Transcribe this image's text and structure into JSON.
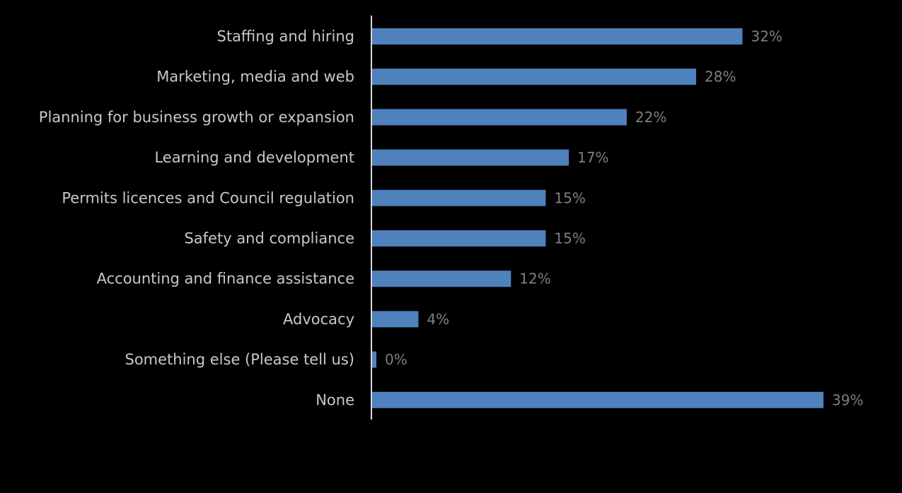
{
  "chart_data": {
    "type": "bar",
    "orientation": "horizontal",
    "categories": [
      "Staffing and hiring",
      "Marketing, media and web",
      "Planning for business growth or expansion",
      "Learning and development",
      "Permits licences and Council regulation",
      "Safety and compliance",
      "Accounting and finance assistance",
      "Advocacy",
      "Something else (Please tell us)",
      "None"
    ],
    "values": [
      32,
      28,
      22,
      17,
      15,
      15,
      12,
      4,
      0,
      39
    ],
    "value_labels": [
      "32%",
      "28%",
      "22%",
      "17%",
      "15%",
      "15%",
      "12%",
      "4%",
      "0%",
      "39%"
    ],
    "value_unit": "%",
    "xlim": [
      0,
      40
    ],
    "grid": false,
    "legend": "none",
    "colors": {
      "background": "#000000",
      "bar": "#4f81bd",
      "axis": "#d9d9d9",
      "category_text": "#c8c8c8",
      "value_text": "#7f7f7f"
    }
  }
}
